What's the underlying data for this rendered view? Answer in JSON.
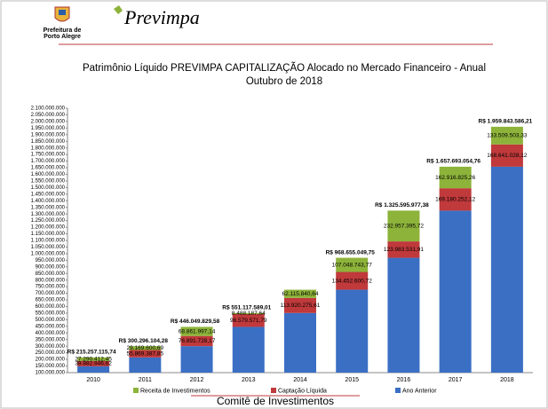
{
  "header": {
    "org_line1": "Prefeitura de",
    "org_line2": "Porto Alegre",
    "brand": "Previmpa"
  },
  "footer": "Comitê de Investimentos",
  "chart_data": {
    "type": "stacked_bar",
    "title": "Patrimônio Líquido PREVIMPA CAPITALIZAÇÃO Alocado no Mercado Financeiro - Anual",
    "subtitle": "Outubro de 2018",
    "categories": [
      "2010",
      "2011",
      "2012",
      "2013",
      "2014",
      "2015",
      "2016",
      "2017",
      "2018"
    ],
    "series": [
      {
        "name": "Receita de Investimentos",
        "color": "#8db33a",
        "values": [
          27290412.45,
          29169600.69,
          68861997.14,
          8488187.64,
          62115840.64,
          107048743.77,
          232957395.72,
          162916825.26,
          133509503.33
        ],
        "value_labels": [
          "27.290.412,45",
          "29.169.600,69",
          "68.861.997,14",
          "8.488.187,64",
          "62.115.840,64",
          "107.048.743,77",
          "232.957.395,72",
          "162.916.825,26",
          "133.509.503,33"
        ]
      },
      {
        "name": "Captação Líquida",
        "color": "#c0393b",
        "values": [
          39882946.62,
          55869387.85,
          76891728.17,
          96579571.79,
          113920275.61,
          134452600.72,
          123983531.91,
          169180252.12,
          168641028.12
        ],
        "value_labels": [
          "39.882.946,62",
          "55.869.387,85",
          "76.891.728,17",
          "96.579.571,79",
          "113.920.275,61",
          "134.452.600,72",
          "123.983.531,91",
          "169.180.252,12",
          "168.641.028,12"
        ]
      },
      {
        "name": "Ano Anterior",
        "color": "#3a6fc4",
        "values": [
          148083756.67,
          215257115.74,
          300296104.28,
          446049829.58,
          551117589.01,
          727153705.26,
          968655049.75,
          1325595977.38,
          1657693054.76
        ]
      }
    ],
    "totals": [
      215257115.74,
      300296104.28,
      446049829.58,
      551117589.01,
      null,
      968655049.75,
      1325595977.38,
      1657693054.76,
      1959843586.21
    ],
    "total_labels": [
      "R$ 215.257.115,74",
      "R$ 300.296.104,28",
      "R$ 446.049.829,58",
      "R$ 551.117.589,01",
      null,
      "R$ 968.655.049,75",
      "R$ 1.325.595.977,38",
      "R$ 1.657.693.054,76",
      "R$ 1.959.843.586,21"
    ],
    "ylim": [
      100000000,
      2100000000
    ],
    "yticks": [
      {
        "value": 100000000,
        "label": "100.000.000"
      },
      {
        "value": 150000000,
        "label": "150.000.000"
      },
      {
        "value": 200000000,
        "label": "200.000.000"
      },
      {
        "value": 250000000,
        "label": "250.000.000"
      },
      {
        "value": 300000000,
        "label": "300.000.000"
      },
      {
        "value": 350000000,
        "label": "350.000.000"
      },
      {
        "value": 400000000,
        "label": "400.000.000"
      },
      {
        "value": 450000000,
        "label": "450.000.000"
      },
      {
        "value": 500000000,
        "label": "500.000.000"
      },
      {
        "value": 550000000,
        "label": "550.000.000"
      },
      {
        "value": 600000000,
        "label": "600.000.000"
      },
      {
        "value": 650000000,
        "label": "650.000.000"
      },
      {
        "value": 700000000,
        "label": "700.000.000"
      },
      {
        "value": 750000000,
        "label": "750.000.000"
      },
      {
        "value": 800000000,
        "label": "800.000.000"
      },
      {
        "value": 850000000,
        "label": "850.000.000"
      },
      {
        "value": 900000000,
        "label": "900.000.000"
      },
      {
        "value": 950000000,
        "label": "950.000.000"
      },
      {
        "value": 1000000000,
        "label": "1.000.000.000"
      },
      {
        "value": 1050000000,
        "label": "1.050.000.000"
      },
      {
        "value": 1100000000,
        "label": "1.100.000.000"
      },
      {
        "value": 1150000000,
        "label": "1.150.000.000"
      },
      {
        "value": 1200000000,
        "label": "1.200.000.000"
      },
      {
        "value": 1250000000,
        "label": "1.250.000.000"
      },
      {
        "value": 1300000000,
        "label": "1.300.000.000"
      },
      {
        "value": 1350000000,
        "label": "1.350.000.000"
      },
      {
        "value": 1400000000,
        "label": "1.400.000.000"
      },
      {
        "value": 1450000000,
        "label": "1.450.000.000"
      },
      {
        "value": 1500000000,
        "label": "1.500.000.000"
      },
      {
        "value": 1550000000,
        "label": "1.550.000.000"
      },
      {
        "value": 1600000000,
        "label": "1.600.000.000"
      },
      {
        "value": 1650000000,
        "label": "1.650.000.000"
      },
      {
        "value": 1700000000,
        "label": "1.700.000.000"
      },
      {
        "value": 1750000000,
        "label": "1.750.000.000"
      },
      {
        "value": 1800000000,
        "label": "1.800.000.000"
      },
      {
        "value": 1850000000,
        "label": "1.850.000.000"
      },
      {
        "value": 1900000000,
        "label": "1.900.000.000"
      },
      {
        "value": 1950000000,
        "label": "1.950.000.000"
      },
      {
        "value": 2000000000,
        "label": "2.000.000.000"
      },
      {
        "value": 2050000000,
        "label": "2.050.000.000"
      },
      {
        "value": 2100000000,
        "label": "2.100.000.000"
      }
    ],
    "legend": "bottom"
  }
}
